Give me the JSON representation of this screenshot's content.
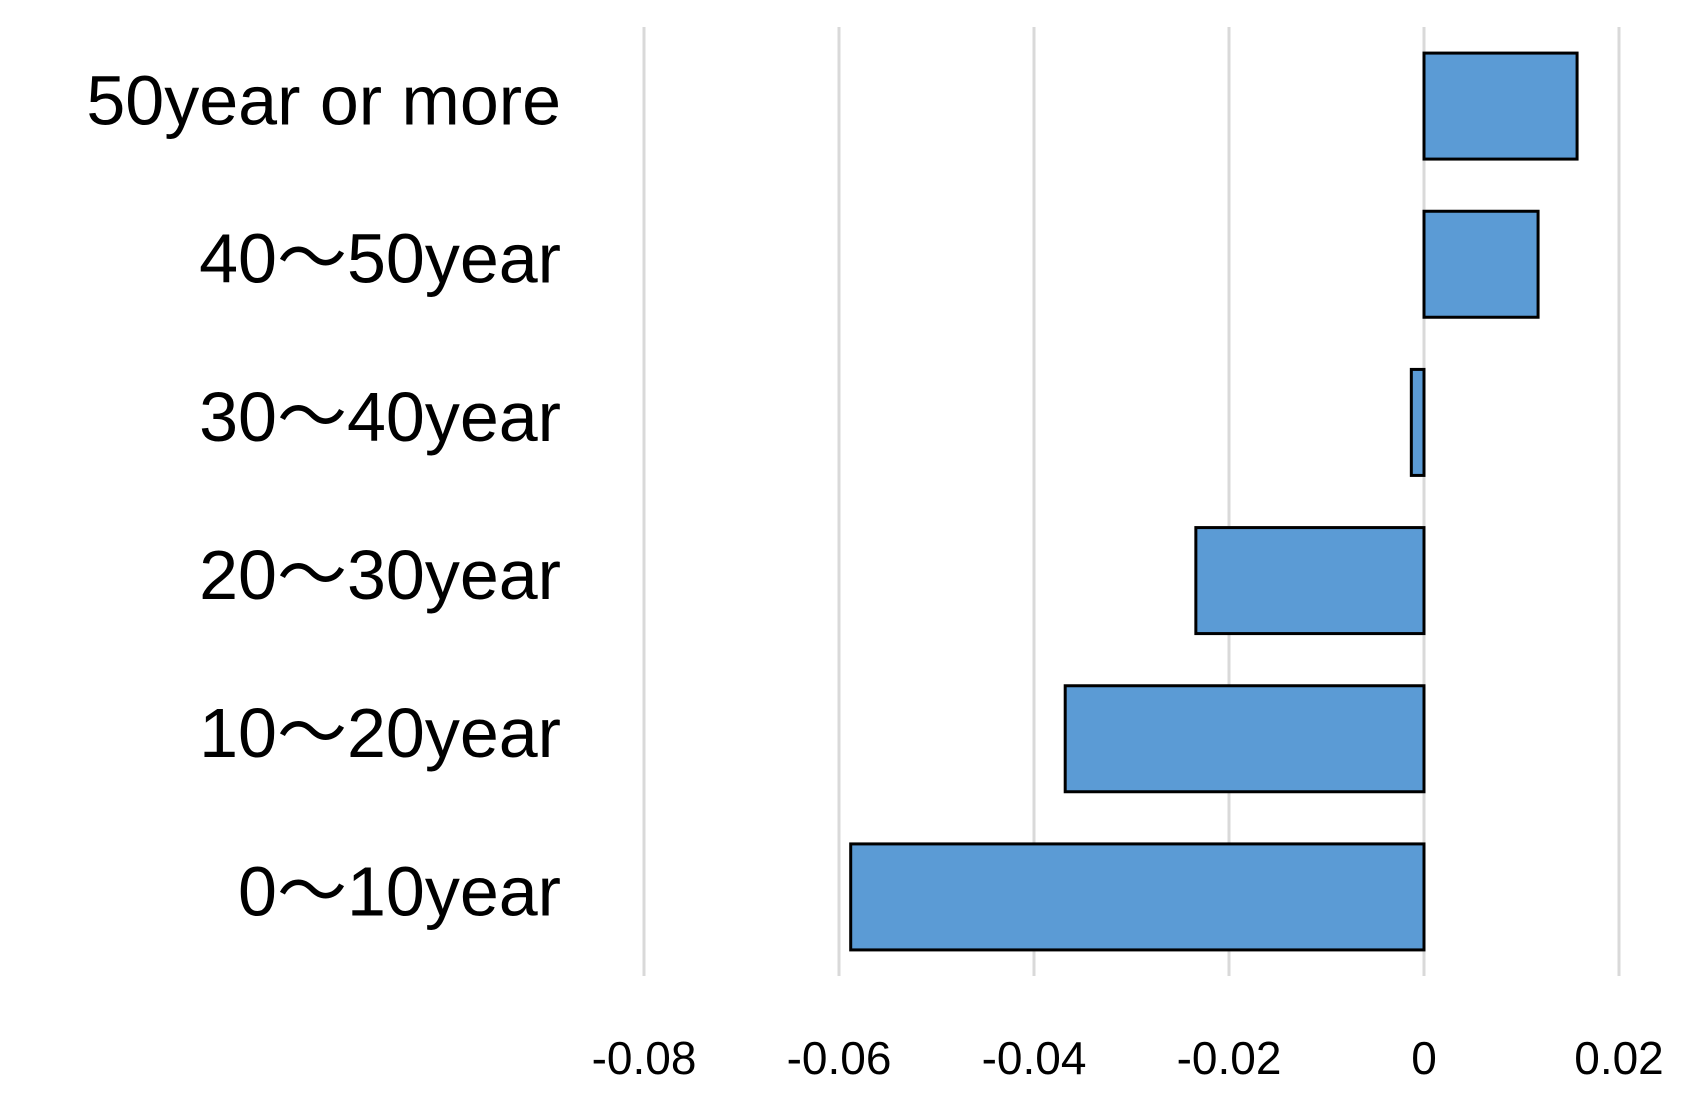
{
  "chart_data": {
    "type": "barh",
    "categories": [
      "0～10year",
      "10～20year",
      "20～30year",
      "30～40year",
      "40～50year",
      "50year or more"
    ],
    "values": [
      -0.0588,
      -0.0368,
      -0.0234,
      -0.0013,
      0.0117,
      0.0157
    ],
    "color": "#5b9bd5",
    "xlim": [
      -0.08,
      0.02
    ],
    "xticks": [
      -0.08,
      -0.06,
      -0.04,
      -0.02,
      0,
      0.02
    ],
    "grid": true
  }
}
